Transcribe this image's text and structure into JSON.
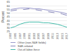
{
  "chart_data": {
    "type": "line",
    "ylabel": "Percent",
    "x": [
      1993,
      1995,
      1997,
      1999,
      2001,
      2003,
      2005,
      2007,
      2009,
      2011,
      2013,
      2015,
      2017
    ],
    "series": [
      {
        "name": "Other (non-S&E fields)",
        "color": "#9999cc",
        "line_style": "solid",
        "values": [
          55,
          56,
          57,
          57,
          57,
          56,
          56,
          55,
          54,
          53,
          52,
          51,
          49
        ]
      },
      {
        "name": "S&E-related",
        "color": "#8888bb",
        "line_style": "dashed",
        "values": [
          53,
          54,
          55,
          55,
          56,
          55,
          54,
          53,
          52,
          51,
          50,
          49,
          47
        ]
      },
      {
        "name": "Out-of-labor-force",
        "color": "#44bbaa",
        "line_style": "solid",
        "values": [
          30,
          32,
          35,
          37,
          38,
          38,
          38,
          37,
          37,
          36,
          35,
          33,
          31
        ]
      }
    ],
    "xlim": [
      1993,
      2017
    ],
    "xticks": [
      1993,
      1995,
      1997,
      1999,
      2001,
      2003,
      2005,
      2007,
      2009,
      2011,
      2013,
      2015,
      2017
    ],
    "ylim": [
      25,
      65
    ],
    "yticks": [
      25,
      30,
      35,
      40,
      45,
      50,
      55,
      60,
      65
    ],
    "grid": "y",
    "legend": "bottom"
  }
}
